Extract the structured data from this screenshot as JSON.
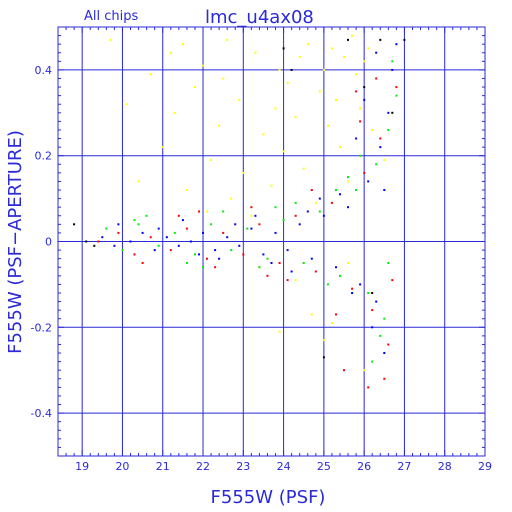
{
  "header": {
    "subtitle": "All chips",
    "title": "lmc_u4ax08"
  },
  "chart_data": {
    "type": "scatter",
    "title": "lmc_u4ax08",
    "subtitle": "All chips",
    "xlabel": "F555W (PSF)",
    "ylabel": "F555W (PSF−APERTURE)",
    "xlim": [
      18.4,
      29.0
    ],
    "ylim": [
      -0.5,
      0.5
    ],
    "xticks": [
      19,
      20,
      21,
      22,
      23,
      24,
      25,
      26,
      27,
      28,
      29
    ],
    "xtick_labels": [
      "19",
      "20",
      "21",
      "22",
      "23",
      "24",
      "25",
      "26",
      "27",
      "28",
      "29"
    ],
    "yticks": [
      -0.4,
      -0.2,
      0,
      0.2,
      0.4
    ],
    "ytick_labels": [
      "-0.4",
      "-0.2",
      "0",
      "0.2",
      "0.4"
    ],
    "grid": true,
    "colors": {
      "axes": "#2a2ad8",
      "grid": "#2a2ad8",
      "text": "#2a2ad8"
    },
    "series": [
      {
        "color": "#ffff00",
        "points": [
          [
            21.5,
            0.46
          ],
          [
            22.0,
            0.41
          ],
          [
            22.6,
            0.47
          ],
          [
            23.3,
            0.44
          ],
          [
            23.9,
            0.4
          ],
          [
            24.6,
            0.46
          ],
          [
            25.2,
            0.45
          ],
          [
            25.7,
            0.48
          ],
          [
            20.7,
            0.39
          ],
          [
            21.8,
            0.36
          ],
          [
            22.9,
            0.33
          ],
          [
            24.1,
            0.37
          ],
          [
            25.0,
            0.4
          ],
          [
            26.0,
            0.42
          ],
          [
            21.3,
            0.3
          ],
          [
            22.4,
            0.27
          ],
          [
            23.5,
            0.25
          ],
          [
            24.3,
            0.29
          ],
          [
            25.3,
            0.33
          ],
          [
            26.3,
            0.38
          ],
          [
            20.1,
            0.32
          ],
          [
            21.0,
            0.22
          ],
          [
            22.2,
            0.19
          ],
          [
            23.0,
            0.16
          ],
          [
            24.0,
            0.21
          ],
          [
            25.1,
            0.27
          ],
          [
            25.9,
            0.31
          ],
          [
            20.4,
            0.14
          ],
          [
            21.6,
            0.12
          ],
          [
            22.7,
            0.1
          ],
          [
            23.7,
            0.13
          ],
          [
            24.5,
            0.17
          ],
          [
            25.4,
            0.22
          ],
          [
            26.2,
            0.26
          ],
          [
            22.1,
            0.07
          ],
          [
            23.2,
            0.06
          ],
          [
            24.8,
            0.09
          ],
          [
            25.6,
            0.14
          ],
          [
            26.5,
            0.19
          ],
          [
            19.7,
            0.47
          ],
          [
            24.9,
            0.35
          ],
          [
            25.5,
            0.43
          ],
          [
            25.8,
            0.39
          ],
          [
            26.1,
            0.45
          ],
          [
            23.8,
            0.31
          ],
          [
            24.4,
            0.43
          ],
          [
            22.5,
            0.38
          ],
          [
            21.2,
            0.44
          ],
          [
            25.2,
            -0.19
          ],
          [
            24.7,
            -0.17
          ],
          [
            25.0,
            -0.23
          ],
          [
            23.9,
            -0.21
          ],
          [
            24.3,
            -0.09
          ],
          [
            23.4,
            -0.06
          ],
          [
            25.6,
            -0.05
          ],
          [
            26.0,
            -0.3
          ]
        ]
      },
      {
        "color": "#0000ff",
        "points": [
          [
            19.5,
            0.01
          ],
          [
            19.8,
            -0.01
          ],
          [
            20.2,
            0.0
          ],
          [
            20.5,
            0.02
          ],
          [
            20.8,
            -0.02
          ],
          [
            21.1,
            0.01
          ],
          [
            21.4,
            -0.01
          ],
          [
            21.7,
            0.0
          ],
          [
            22.0,
            0.02
          ],
          [
            22.3,
            -0.02
          ],
          [
            22.6,
            0.01
          ],
          [
            22.9,
            -0.01
          ],
          [
            23.2,
            0.03
          ],
          [
            23.5,
            -0.03
          ],
          [
            23.8,
            0.02
          ],
          [
            24.1,
            -0.02
          ],
          [
            24.4,
            0.04
          ],
          [
            24.7,
            -0.04
          ],
          [
            25.0,
            0.06
          ],
          [
            25.3,
            -0.06
          ],
          [
            25.6,
            0.08
          ],
          [
            25.9,
            -0.1
          ],
          [
            26.1,
            0.14
          ],
          [
            26.3,
            -0.14
          ],
          [
            26.4,
            0.22
          ],
          [
            26.6,
            0.3
          ],
          [
            26.7,
            0.4
          ],
          [
            26.8,
            0.46
          ],
          [
            25.8,
            0.24
          ],
          [
            26.2,
            -0.2
          ],
          [
            20.9,
            0.03
          ],
          [
            21.9,
            -0.03
          ],
          [
            22.8,
            0.04
          ],
          [
            23.7,
            -0.05
          ],
          [
            24.6,
            0.07
          ],
          [
            25.4,
            0.11
          ],
          [
            26.0,
            0.33
          ],
          [
            26.5,
            -0.26
          ],
          [
            19.9,
            0.04
          ],
          [
            20.3,
            -0.03
          ],
          [
            21.5,
            0.05
          ],
          [
            22.4,
            -0.04
          ],
          [
            23.3,
            0.06
          ],
          [
            24.2,
            -0.07
          ],
          [
            24.9,
            0.1
          ],
          [
            25.7,
            -0.12
          ],
          [
            26.3,
            0.44
          ],
          [
            26.5,
            0.12
          ]
        ]
      },
      {
        "color": "#00ee00",
        "points": [
          [
            19.6,
            0.03
          ],
          [
            20.0,
            -0.02
          ],
          [
            20.4,
            0.04
          ],
          [
            20.9,
            -0.01
          ],
          [
            21.3,
            0.02
          ],
          [
            21.8,
            -0.03
          ],
          [
            22.2,
            0.04
          ],
          [
            22.7,
            -0.02
          ],
          [
            23.1,
            0.03
          ],
          [
            23.6,
            -0.04
          ],
          [
            24.0,
            0.05
          ],
          [
            24.5,
            -0.05
          ],
          [
            24.9,
            0.07
          ],
          [
            25.4,
            -0.08
          ],
          [
            25.8,
            0.12
          ],
          [
            26.1,
            -0.12
          ],
          [
            26.3,
            0.18
          ],
          [
            26.5,
            -0.18
          ],
          [
            26.6,
            0.26
          ],
          [
            26.8,
            0.34
          ],
          [
            20.6,
            0.06
          ],
          [
            21.6,
            -0.05
          ],
          [
            22.5,
            0.07
          ],
          [
            23.4,
            -0.06
          ],
          [
            24.3,
            0.09
          ],
          [
            25.1,
            -0.1
          ],
          [
            25.9,
            0.2
          ],
          [
            26.4,
            -0.22
          ],
          [
            26.7,
            0.42
          ],
          [
            25.6,
            0.15
          ],
          [
            20.3,
            0.05
          ],
          [
            22.0,
            -0.06
          ],
          [
            23.8,
            0.08
          ],
          [
            25.3,
            0.12
          ],
          [
            26.2,
            -0.28
          ],
          [
            26.6,
            -0.05
          ]
        ]
      },
      {
        "color": "#ff0000",
        "points": [
          [
            19.4,
            0.0
          ],
          [
            19.9,
            0.02
          ],
          [
            20.3,
            -0.03
          ],
          [
            20.7,
            0.01
          ],
          [
            21.2,
            -0.02
          ],
          [
            21.6,
            0.03
          ],
          [
            22.1,
            -0.04
          ],
          [
            22.5,
            0.02
          ],
          [
            23.0,
            -0.03
          ],
          [
            23.4,
            0.04
          ],
          [
            23.9,
            -0.05
          ],
          [
            24.3,
            0.06
          ],
          [
            24.8,
            -0.07
          ],
          [
            25.2,
            0.09
          ],
          [
            25.7,
            -0.11
          ],
          [
            26.0,
            0.16
          ],
          [
            26.2,
            -0.16
          ],
          [
            26.4,
            0.24
          ],
          [
            26.6,
            -0.24
          ],
          [
            26.8,
            0.36
          ],
          [
            25.5,
            -0.3
          ],
          [
            26.1,
            -0.34
          ],
          [
            26.5,
            -0.32
          ],
          [
            25.9,
            0.28
          ],
          [
            26.3,
            0.38
          ],
          [
            20.5,
            -0.05
          ],
          [
            21.4,
            0.06
          ],
          [
            22.3,
            -0.06
          ],
          [
            23.2,
            0.08
          ],
          [
            24.1,
            -0.09
          ],
          [
            24.7,
            0.12
          ],
          [
            25.3,
            -0.17
          ],
          [
            25.8,
            0.35
          ],
          [
            26.7,
            -0.09
          ],
          [
            21.9,
            0.07
          ],
          [
            23.6,
            -0.08
          ]
        ]
      },
      {
        "color": "#000000",
        "points": [
          [
            18.8,
            0.04
          ],
          [
            19.1,
            0.0
          ],
          [
            19.3,
            -0.01
          ],
          [
            24.0,
            0.45
          ],
          [
            24.2,
            0.4
          ],
          [
            26.0,
            0.36
          ],
          [
            26.4,
            0.47
          ],
          [
            26.7,
            0.3
          ],
          [
            27.0,
            0.47
          ],
          [
            25.0,
            -0.27
          ],
          [
            26.2,
            -0.12
          ],
          [
            25.6,
            0.47
          ]
        ]
      }
    ]
  }
}
